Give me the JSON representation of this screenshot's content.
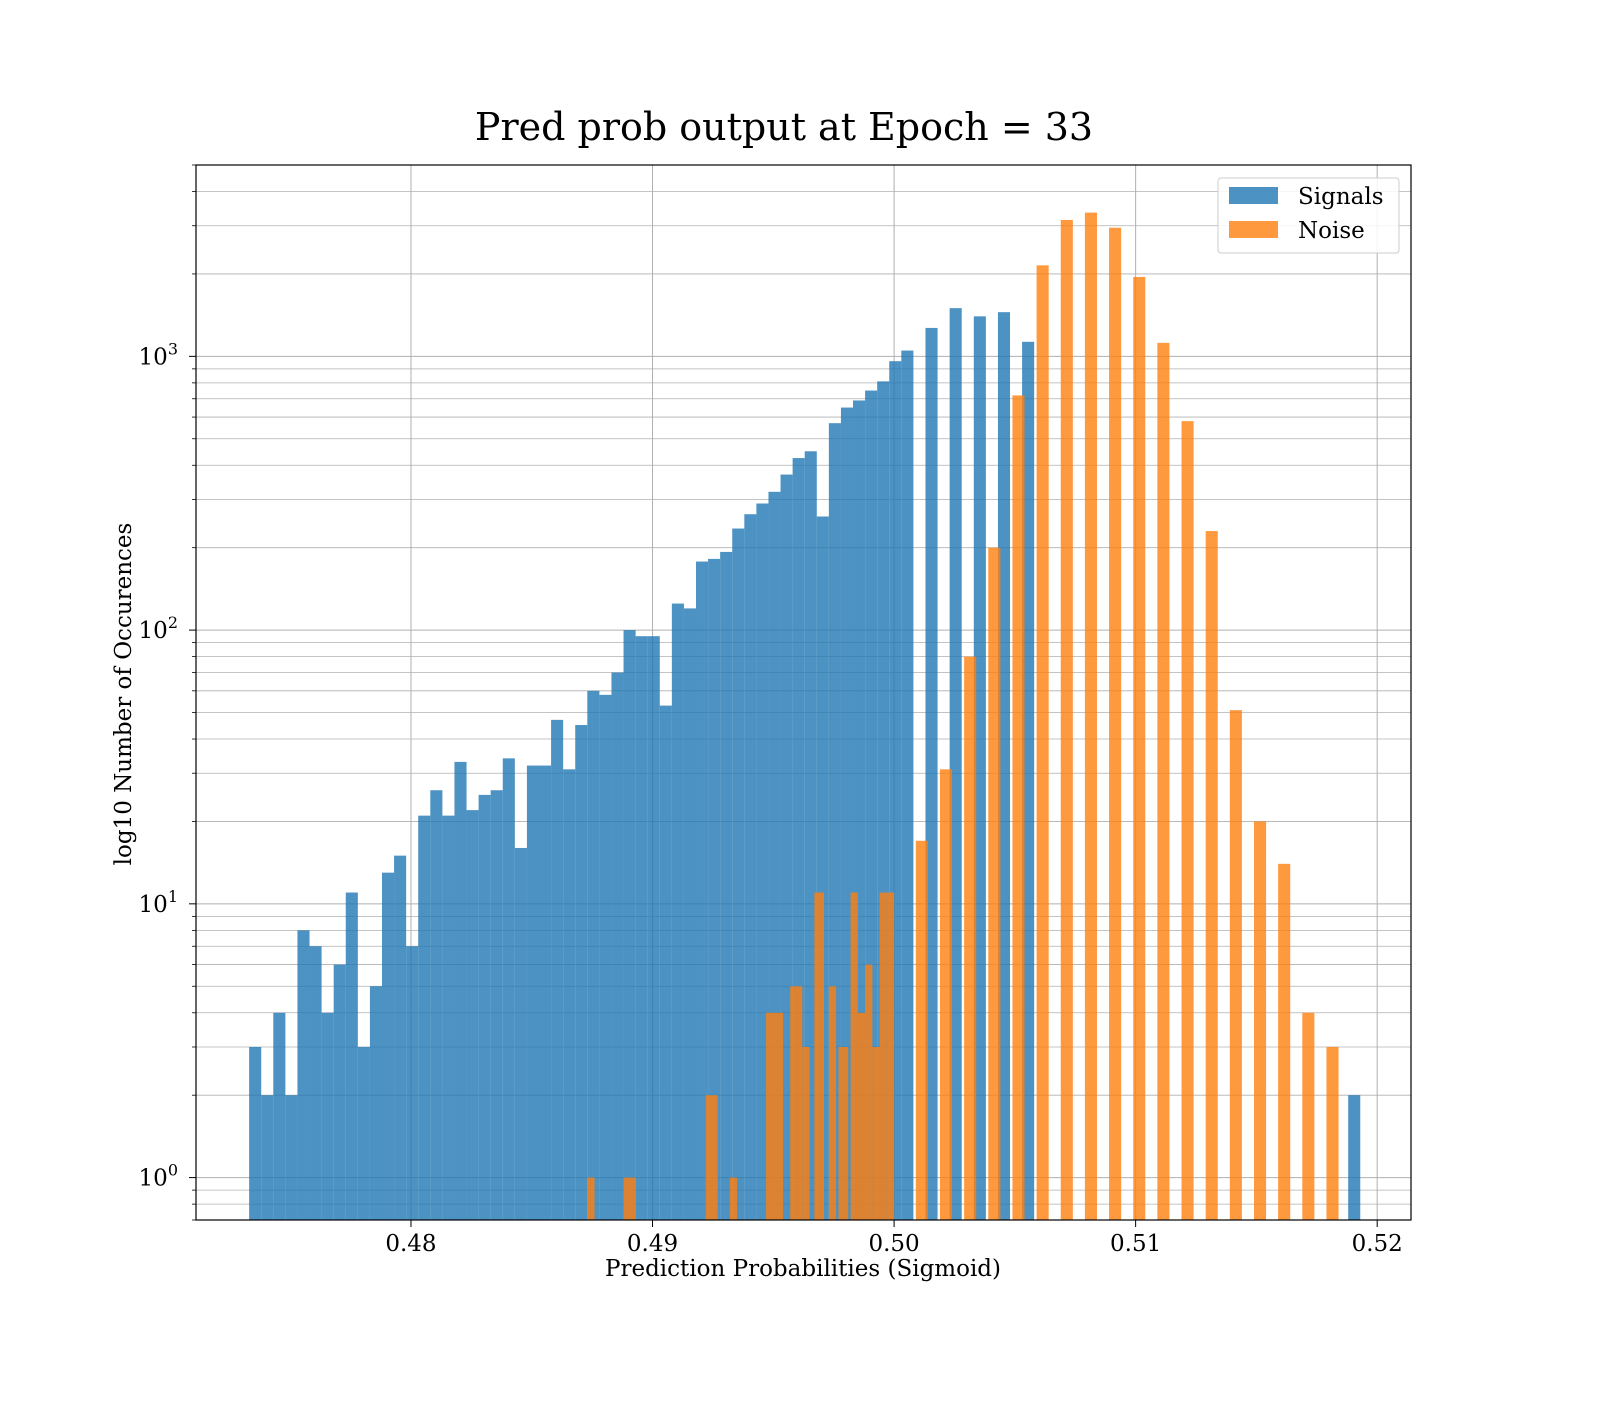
{
  "chart_data": {
    "type": "histogram",
    "title": "Pred prob output at Epoch = 33",
    "xlabel": "Prediction Probabilities (Sigmoid)",
    "ylabel": "log10 Number of Occurences",
    "x_range": [
      0.4711,
      0.5214
    ],
    "y_scale": "log",
    "y_range": [
      0.7,
      5000
    ],
    "grid": "major and minor",
    "legend_position": "top-right",
    "xticks": [
      {
        "value": 0.48,
        "label": "0.48"
      },
      {
        "value": 0.49,
        "label": "0.49"
      },
      {
        "value": 0.5,
        "label": "0.50"
      },
      {
        "value": 0.51,
        "label": "0.51"
      },
      {
        "value": 0.52,
        "label": "0.52"
      }
    ],
    "yticks": [
      {
        "value": 1,
        "base": "10",
        "exponent": "0"
      },
      {
        "value": 10,
        "base": "10",
        "exponent": "1"
      },
      {
        "value": 100,
        "base": "10",
        "exponent": "2"
      },
      {
        "value": 1000,
        "base": "10",
        "exponent": "3"
      }
    ],
    "series": [
      {
        "name": "Signals",
        "color": "#1f77b4",
        "opacity": 0.8,
        "bins": [
          [
            0.4733,
            0.4738,
            3
          ],
          [
            0.4738,
            0.4743,
            2
          ],
          [
            0.4743,
            0.4748,
            4
          ],
          [
            0.4748,
            0.4753,
            2
          ],
          [
            0.4753,
            0.4758,
            8
          ],
          [
            0.4758,
            0.4763,
            7
          ],
          [
            0.4763,
            0.4768,
            4
          ],
          [
            0.4768,
            0.4773,
            6
          ],
          [
            0.4773,
            0.4778,
            11
          ],
          [
            0.4778,
            0.4783,
            3
          ],
          [
            0.4783,
            0.4788,
            5
          ],
          [
            0.4788,
            0.4793,
            13
          ],
          [
            0.4793,
            0.4798,
            15
          ],
          [
            0.4798,
            0.4803,
            7
          ],
          [
            0.4803,
            0.4808,
            21
          ],
          [
            0.4808,
            0.4813,
            26
          ],
          [
            0.4813,
            0.4818,
            21
          ],
          [
            0.4818,
            0.4823,
            33
          ],
          [
            0.4823,
            0.4828,
            22
          ],
          [
            0.4828,
            0.4833,
            25
          ],
          [
            0.4833,
            0.4838,
            26
          ],
          [
            0.4838,
            0.4843,
            34
          ],
          [
            0.4843,
            0.4848,
            16
          ],
          [
            0.4848,
            0.4853,
            32
          ],
          [
            0.4853,
            0.4858,
            32
          ],
          [
            0.4858,
            0.4863,
            47
          ],
          [
            0.4863,
            0.4868,
            31
          ],
          [
            0.4868,
            0.4873,
            45
          ],
          [
            0.4873,
            0.4878,
            60
          ],
          [
            0.4878,
            0.4883,
            58
          ],
          [
            0.4883,
            0.4888,
            70
          ],
          [
            0.4888,
            0.4893,
            100
          ],
          [
            0.4893,
            0.4898,
            95
          ],
          [
            0.4898,
            0.4903,
            95
          ],
          [
            0.4903,
            0.4908,
            53
          ],
          [
            0.4908,
            0.4913,
            125
          ],
          [
            0.4913,
            0.4918,
            120
          ],
          [
            0.4918,
            0.4923,
            178
          ],
          [
            0.4923,
            0.4928,
            182
          ],
          [
            0.4928,
            0.4933,
            193
          ],
          [
            0.4933,
            0.4938,
            235
          ],
          [
            0.4938,
            0.4943,
            265
          ],
          [
            0.4943,
            0.4948,
            290
          ],
          [
            0.4948,
            0.4953,
            320
          ],
          [
            0.4953,
            0.4958,
            370
          ],
          [
            0.4958,
            0.4963,
            425
          ],
          [
            0.4963,
            0.4968,
            450
          ],
          [
            0.4968,
            0.4973,
            260
          ],
          [
            0.4973,
            0.4978,
            570
          ],
          [
            0.4978,
            0.4983,
            650
          ],
          [
            0.4983,
            0.4988,
            690
          ],
          [
            0.4988,
            0.4993,
            750
          ],
          [
            0.4993,
            0.4998,
            810
          ],
          [
            0.4998,
            0.5003,
            960
          ],
          [
            0.5003,
            0.5008,
            1050
          ],
          [
            0.5013,
            0.5018,
            1270
          ],
          [
            0.5023,
            0.5028,
            1500
          ],
          [
            0.5033,
            0.5038,
            1400
          ],
          [
            0.5043,
            0.5048,
            1450
          ],
          [
            0.5053,
            0.5058,
            1130
          ],
          [
            0.5188,
            0.5193,
            2
          ]
        ]
      },
      {
        "name": "Noise",
        "color": "#ff7f0e",
        "opacity": 0.8,
        "bins": [
          [
            0.4873,
            0.4876,
            1
          ],
          [
            0.4888,
            0.4893,
            1
          ],
          [
            0.4922,
            0.4927,
            2
          ],
          [
            0.4932,
            0.4935,
            1
          ],
          [
            0.4947,
            0.4954,
            4
          ],
          [
            0.4957,
            0.4962,
            5
          ],
          [
            0.4962,
            0.4965,
            3
          ],
          [
            0.4967,
            0.4971,
            11
          ],
          [
            0.4973,
            0.4976,
            5
          ],
          [
            0.4977,
            0.4981,
            3
          ],
          [
            0.4982,
            0.4985,
            11
          ],
          [
            0.4985,
            0.4988,
            4
          ],
          [
            0.4988,
            0.4991,
            6
          ],
          [
            0.4991,
            0.4994,
            3
          ],
          [
            0.4994,
            0.4997,
            11
          ],
          [
            0.4997,
            0.5,
            11
          ],
          [
            0.5009,
            0.5014,
            17
          ],
          [
            0.5019,
            0.5024,
            31
          ],
          [
            0.5029,
            0.5034,
            80
          ],
          [
            0.5039,
            0.5044,
            200
          ],
          [
            0.5049,
            0.5054,
            720
          ],
          [
            0.5059,
            0.5064,
            2150
          ],
          [
            0.5069,
            0.5074,
            3150
          ],
          [
            0.5079,
            0.5084,
            3350
          ],
          [
            0.5089,
            0.5094,
            2950
          ],
          [
            0.5099,
            0.5104,
            1950
          ],
          [
            0.5109,
            0.5114,
            1120
          ],
          [
            0.5119,
            0.5124,
            580
          ],
          [
            0.5129,
            0.5134,
            230
          ],
          [
            0.5139,
            0.5144,
            51
          ],
          [
            0.5149,
            0.5154,
            20
          ],
          [
            0.5159,
            0.5164,
            14
          ],
          [
            0.5169,
            0.5174,
            4
          ],
          [
            0.5179,
            0.5184,
            3
          ]
        ]
      }
    ]
  }
}
